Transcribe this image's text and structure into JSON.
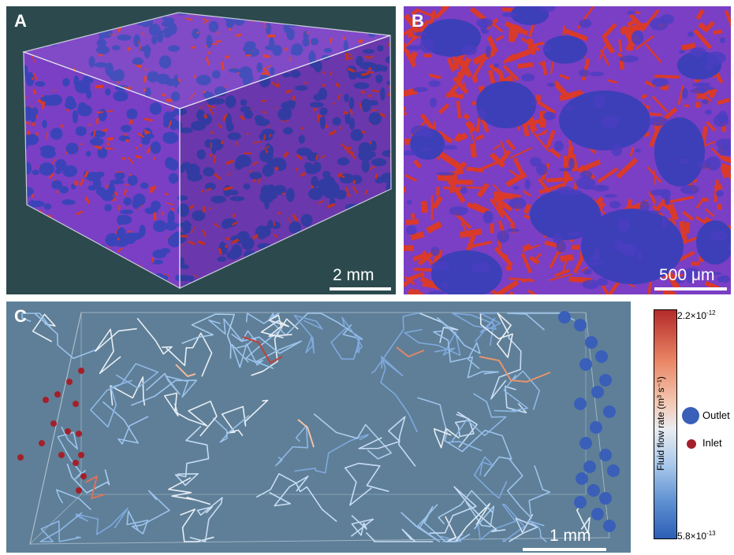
{
  "panel_a": {
    "label": "A",
    "scale_bar": "2 mm"
  },
  "panel_b": {
    "label": "B",
    "scale_bar": "500 μm"
  },
  "panel_c": {
    "label": "C",
    "scale_bar": "1 mm"
  },
  "colorbar": {
    "title": "Fluid flow rate (m³ s⁻¹)",
    "max_label": "2.2×10",
    "max_exp": "-12",
    "min_label": "5.8×10",
    "min_exp": "-13",
    "colors": [
      "#b42a2a",
      "#e98564",
      "#e9ecf0",
      "#5d8fd1",
      "#2c5fb6"
    ]
  },
  "legend": {
    "outlet": {
      "label": "Outlet",
      "color": "#3a5fb8"
    },
    "inlet": {
      "label": "Inlet",
      "color": "#a3202a"
    }
  },
  "colors": {
    "grain_blue": "#3a44b8",
    "pore_red": "#d93a2a",
    "pore_purple": "#7a3fc4",
    "background_a": "#2c4a4e",
    "background_c": "#5e7f97"
  }
}
